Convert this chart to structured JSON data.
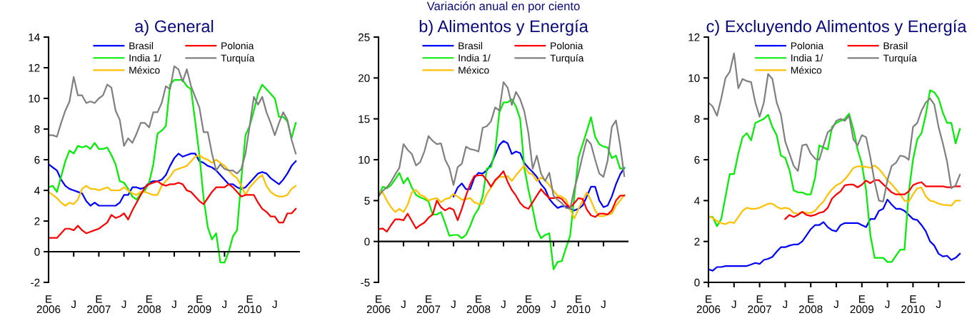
{
  "chart_data": [
    {
      "type": "line",
      "title": "a) General",
      "ref_lines": [
        {
          "axis": "y",
          "value": 0,
          "color": "#000000"
        }
      ],
      "legend": "top",
      "marker": "none",
      "line_style": "solid",
      "grid": false,
      "categories": [
        "E\n2006",
        null,
        null,
        null,
        null,
        null,
        "J",
        null,
        null,
        null,
        null,
        null,
        "E\n2007",
        null,
        null,
        null,
        null,
        null,
        "J",
        null,
        null,
        null,
        null,
        null,
        "E\n2008",
        null,
        null,
        null,
        null,
        null,
        "J",
        null,
        null,
        null,
        null,
        null,
        "E\n2009",
        null,
        null,
        null,
        null,
        null,
        "J",
        null,
        null,
        null,
        null,
        null,
        "E\n2010",
        null,
        null,
        null,
        null,
        null,
        "J",
        null,
        null,
        null,
        null,
        null
      ],
      "ylim": [
        -2,
        14
      ],
      "yticks": [
        -2,
        0,
        2,
        4,
        6,
        8,
        10,
        12,
        14
      ],
      "series": [
        {
          "name": "Brasil",
          "color": "#0000ff",
          "values": [
            5.7,
            5.5,
            5.3,
            4.7,
            4.3,
            4.1,
            4.0,
            3.9,
            3.8,
            3.3,
            3.0,
            3.2,
            3.0,
            3.0,
            3.0,
            3.0,
            3.0,
            3.2,
            3.7,
            3.7,
            4.2,
            4.2,
            4.1,
            4.2,
            4.5,
            4.6,
            4.6,
            4.7,
            5.0,
            5.6,
            6.1,
            6.4,
            6.2,
            6.3,
            6.4,
            6.4,
            5.9,
            5.8,
            5.6,
            5.5,
            5.3,
            5.0,
            4.7,
            4.4,
            4.4,
            4.2,
            4.1,
            4.2,
            4.5,
            4.8,
            5.1,
            5.2,
            5.1,
            4.8,
            4.6,
            4.4,
            4.7,
            5.1,
            5.6,
            5.9
          ]
        },
        {
          "name": "India 1/",
          "color": "#00ee00",
          "values": [
            4.2,
            4.3,
            3.9,
            4.9,
            5.9,
            6.6,
            6.4,
            6.9,
            6.8,
            6.9,
            6.7,
            7.1,
            6.7,
            6.7,
            6.8,
            6.3,
            5.7,
            4.6,
            4.5,
            4.1,
            3.6,
            3.4,
            3.8,
            4.0,
            4.5,
            5.7,
            7.7,
            7.9,
            8.2,
            10.9,
            11.2,
            11.2,
            11.2,
            10.8,
            10.6,
            8.5,
            6.3,
            3.5,
            1.6,
            0.8,
            1.2,
            -0.7,
            -0.7,
            0.0,
            1.0,
            1.4,
            4.7,
            7.6,
            8.2,
            9.2,
            10.3,
            10.9,
            10.6,
            10.3,
            10.0,
            8.8,
            8.8,
            8.5,
            7.4,
            8.4
          ]
        },
        {
          "name": "México",
          "color": "#ffc000",
          "values": [
            3.9,
            3.7,
            3.5,
            3.2,
            3.0,
            3.2,
            3.1,
            3.4,
            4.1,
            4.3,
            4.1,
            4.1,
            4.0,
            4.1,
            4.2,
            4.0,
            4.0,
            4.0,
            4.2,
            4.0,
            3.8,
            3.7,
            3.9,
            3.9,
            3.8,
            3.7,
            3.7,
            4.3,
            4.6,
            4.9,
            5.3,
            5.4,
            5.5,
            5.6,
            5.9,
            6.2,
            6.3,
            6.1,
            6.0,
            5.8,
            6.0,
            5.8,
            5.6,
            5.3,
            5.0,
            4.8,
            4.3,
            3.7,
            4.2,
            4.5,
            4.8,
            5.0,
            4.3,
            3.9,
            3.7,
            3.6,
            3.6,
            3.7,
            4.1,
            4.3
          ]
        },
        {
          "name": "Polonia",
          "color": "#ff0000",
          "values": [
            0.9,
            0.9,
            0.9,
            1.2,
            1.5,
            1.5,
            1.4,
            1.7,
            1.4,
            1.2,
            1.3,
            1.4,
            1.5,
            1.7,
            1.9,
            2.4,
            2.2,
            2.3,
            2.5,
            2.1,
            2.7,
            3.2,
            3.7,
            4.2,
            4.4,
            4.5,
            4.6,
            4.4,
            4.3,
            4.4,
            4.4,
            4.5,
            4.4,
            4.0,
            3.9,
            3.6,
            3.3,
            3.1,
            3.5,
            3.9,
            4.2,
            4.2,
            4.2,
            4.4,
            4.2,
            3.9,
            3.6,
            3.7,
            3.7,
            3.7,
            3.2,
            2.8,
            2.6,
            2.3,
            2.3,
            1.9,
            1.9,
            2.5,
            2.5,
            2.8
          ]
        },
        {
          "name": "Turquía",
          "color": "#808080",
          "values": [
            7.6,
            7.6,
            7.5,
            8.4,
            9.2,
            9.8,
            11.4,
            10.2,
            10.2,
            9.7,
            9.8,
            9.7,
            10.0,
            10.2,
            10.9,
            10.7,
            9.2,
            8.6,
            6.9,
            7.4,
            7.1,
            7.7,
            8.4,
            8.4,
            8.1,
            9.1,
            9.1,
            9.7,
            10.8,
            10.6,
            12.1,
            11.9,
            11.1,
            11.9,
            10.8,
            10.1,
            9.4,
            7.8,
            7.8,
            6.4,
            5.3,
            5.7,
            5.4,
            5.3,
            5.3,
            5.1,
            5.4,
            6.4,
            8.2,
            10.1,
            9.6,
            10.1,
            9.1,
            8.4,
            7.6,
            8.4,
            9.1,
            8.6,
            7.3,
            6.4
          ]
        }
      ]
    },
    {
      "type": "line",
      "title": "b) Alimentos y Energía",
      "annotations": [
        "Variación anual en por ciento"
      ],
      "ref_lines": [
        {
          "axis": "y",
          "value": 0,
          "color": "#000000"
        }
      ],
      "legend": "top",
      "marker": "none",
      "line_style": "solid",
      "grid": false,
      "categories": [
        "E\n2006",
        null,
        null,
        null,
        null,
        null,
        "J",
        null,
        null,
        null,
        null,
        null,
        "E\n2007",
        null,
        null,
        null,
        null,
        null,
        "J",
        null,
        null,
        null,
        null,
        null,
        "E\n2008",
        null,
        null,
        null,
        null,
        null,
        "J",
        null,
        null,
        null,
        null,
        null,
        "E\n2009",
        null,
        null,
        null,
        null,
        null,
        "J",
        null,
        null,
        null,
        null,
        null,
        "E\n2010",
        null,
        null,
        null,
        null,
        null,
        "J",
        null,
        null,
        null,
        null,
        null
      ],
      "ylim": [
        -5,
        25
      ],
      "yticks": [
        -5,
        0,
        5,
        10,
        15,
        20,
        25
      ],
      "series": [
        {
          "name": "Brasil",
          "color": "#0000ff",
          "values": [
            null,
            null,
            null,
            null,
            null,
            null,
            null,
            null,
            null,
            null,
            null,
            null,
            null,
            null,
            null,
            null,
            null,
            null,
            5.5,
            6.6,
            7.1,
            6.4,
            6.4,
            7.8,
            8.4,
            8.3,
            8.7,
            9.4,
            10.6,
            11.8,
            12.3,
            12.0,
            10.7,
            11.0,
            10.8,
            9.6,
            9.0,
            8.5,
            7.9,
            7.0,
            6.4,
            5.2,
            4.6,
            4.1,
            4.3,
            4.3,
            4.0,
            3.8,
            4.0,
            4.4,
            5.5,
            6.7,
            6.7,
            5.0,
            4.2,
            4.4,
            5.5,
            7.0,
            8.2,
            9.0
          ]
        },
        {
          "name": "India 1/",
          "color": "#00ee00",
          "values": [
            5.5,
            6.7,
            6.5,
            6.9,
            7.6,
            8.4,
            7.1,
            7.8,
            6.6,
            5.7,
            5.4,
            5.2,
            4.9,
            3.3,
            3.3,
            3.6,
            2.2,
            0.7,
            0.8,
            0.8,
            0.4,
            0.8,
            1.9,
            3.2,
            4.0,
            5.5,
            8.9,
            9.1,
            11.0,
            15.8,
            17.0,
            17.0,
            17.4,
            16.5,
            15.0,
            9.0,
            6.3,
            4.0,
            1.5,
            0.4,
            0.8,
            1.0,
            -3.4,
            -2.5,
            -2.4,
            -0.8,
            0.7,
            5.5,
            10.3,
            11.9,
            13.5,
            15.2,
            12.8,
            11.9,
            11.6,
            11.5,
            10.2,
            10.5,
            8.9,
            9.0
          ]
        },
        {
          "name": "México",
          "color": "#ffc000",
          "values": [
            6.1,
            6.0,
            5.0,
            4.2,
            3.6,
            4.0,
            3.6,
            4.5,
            6.0,
            6.3,
            5.7,
            5.5,
            5.0,
            5.2,
            5.3,
            4.8,
            5.2,
            5.3,
            5.8,
            5.5,
            5.1,
            5.2,
            5.3,
            4.8,
            4.6,
            4.6,
            5.8,
            6.6,
            7.4,
            7.9,
            7.9,
            8.0,
            7.4,
            8.1,
            8.7,
            9.3,
            8.4,
            8.2,
            7.4,
            7.8,
            7.5,
            6.9,
            6.2,
            5.6,
            5.5,
            5.1,
            4.0,
            2.8,
            4.0,
            5.0,
            6.0,
            5.0,
            3.8,
            3.1,
            3.1,
            3.3,
            3.4,
            4.4,
            5.0,
            5.7
          ]
        },
        {
          "name": "Polonia",
          "color": "#ff0000",
          "values": [
            1.5,
            1.6,
            1.2,
            2.0,
            2.7,
            2.7,
            2.6,
            3.4,
            2.5,
            1.6,
            2.0,
            2.3,
            2.9,
            3.3,
            5.0,
            4.2,
            3.8,
            4.1,
            3.9,
            2.6,
            4.0,
            5.6,
            7.0,
            8.0,
            8.1,
            8.1,
            7.5,
            6.7,
            7.5,
            8.0,
            8.6,
            7.3,
            6.3,
            5.6,
            4.7,
            4.2,
            4.0,
            4.8,
            5.6,
            6.4,
            5.8,
            5.3,
            5.3,
            5.4,
            5.2,
            4.6,
            4.1,
            4.7,
            5.3,
            5.2,
            3.9,
            3.2,
            3.0,
            3.4,
            3.4,
            3.3,
            3.8,
            5.0,
            5.6,
            5.6
          ]
        },
        {
          "name": "Turquía",
          "color": "#808080",
          "values": [
            5.5,
            6.2,
            6.6,
            7.3,
            8.2,
            9.0,
            11.9,
            11.2,
            10.7,
            9.3,
            9.7,
            11.0,
            12.9,
            12.3,
            11.9,
            12.0,
            10.0,
            9.0,
            6.9,
            9.1,
            9.5,
            11.6,
            11.3,
            11.2,
            11.0,
            13.9,
            14.1,
            14.7,
            16.4,
            16.0,
            19.5,
            18.8,
            16.7,
            18.3,
            17.4,
            15.9,
            13.2,
            8.9,
            10.5,
            8.3,
            7.4,
            8.4,
            5.6,
            5.1,
            4.7,
            4.1,
            4.0,
            6.4,
            8.3,
            10.5,
            12.5,
            11.9,
            10.0,
            8.3,
            7.9,
            9.9,
            14.0,
            14.8,
            11.8,
            8.0
          ]
        }
      ]
    },
    {
      "type": "line",
      "title": "c) Excluyendo Alimentos y Energía",
      "legend": "top",
      "marker": "none",
      "line_style": "solid",
      "grid": false,
      "categories": [
        "E\n2006",
        null,
        null,
        null,
        null,
        null,
        "J",
        null,
        null,
        null,
        null,
        null,
        "E\n2007",
        null,
        null,
        null,
        null,
        null,
        "J",
        null,
        null,
        null,
        null,
        null,
        "E\n2008",
        null,
        null,
        null,
        null,
        null,
        "J",
        null,
        null,
        null,
        null,
        null,
        "E\n2009",
        null,
        null,
        null,
        null,
        null,
        "J",
        null,
        null,
        null,
        null,
        null,
        "E\n2010",
        null,
        null,
        null,
        null,
        null,
        "J",
        null,
        null,
        null,
        null,
        null
      ],
      "ylim": [
        0,
        12
      ],
      "yticks": [
        0,
        2,
        4,
        6,
        8,
        10,
        12
      ],
      "series": [
        {
          "name": "Polonia",
          "color": "#0000ff",
          "values": [
            0.63,
            0.57,
            0.75,
            0.75,
            0.8,
            0.8,
            0.8,
            0.8,
            0.8,
            0.8,
            0.87,
            0.95,
            0.9,
            1.1,
            1.15,
            1.25,
            1.5,
            1.72,
            1.72,
            1.8,
            1.85,
            1.85,
            2.0,
            2.3,
            2.6,
            2.8,
            2.8,
            2.95,
            2.7,
            2.55,
            2.5,
            2.8,
            2.9,
            2.9,
            2.9,
            2.9,
            2.8,
            2.7,
            3.1,
            3.1,
            3.5,
            3.6,
            4.05,
            3.8,
            3.6,
            3.6,
            3.5,
            3.3,
            3.1,
            3.05,
            2.8,
            2.5,
            2.0,
            1.8,
            1.4,
            1.27,
            1.3,
            1.1,
            1.2,
            1.4
          ]
        },
        {
          "name": "India 1/",
          "color": "#00ee00",
          "values": [
            3.2,
            3.2,
            2.75,
            3.1,
            4.2,
            5.3,
            5.3,
            6.3,
            7.1,
            7.3,
            6.95,
            7.8,
            7.9,
            8.0,
            8.2,
            7.6,
            7.2,
            6.2,
            6.1,
            5.5,
            4.5,
            4.4,
            4.4,
            4.3,
            4.3,
            5.1,
            6.7,
            6.6,
            6.5,
            7.6,
            7.8,
            7.9,
            8.0,
            8.25,
            7.5,
            6.5,
            5.8,
            4.5,
            2.3,
            1.2,
            1.2,
            1.2,
            1.0,
            1.0,
            1.3,
            1.6,
            1.6,
            4.4,
            6.0,
            7.0,
            7.3,
            8.2,
            9.4,
            9.3,
            9.0,
            8.3,
            7.8,
            7.8,
            6.8,
            7.5
          ]
        },
        {
          "name": "México",
          "color": "#ffc000",
          "values": [
            3.25,
            3.15,
            3.0,
            2.9,
            2.85,
            2.95,
            2.9,
            3.2,
            3.5,
            3.65,
            3.6,
            3.6,
            3.65,
            3.75,
            3.85,
            3.85,
            3.7,
            3.6,
            3.65,
            3.6,
            3.4,
            3.35,
            3.45,
            3.4,
            3.4,
            3.5,
            3.75,
            3.95,
            4.3,
            4.55,
            4.75,
            4.85,
            5.05,
            5.3,
            5.6,
            5.67,
            5.67,
            5.65,
            5.6,
            5.72,
            5.55,
            5.3,
            5.0,
            4.8,
            4.55,
            4.3,
            4.0,
            3.95,
            4.3,
            4.6,
            4.64,
            4.2,
            4.0,
            3.95,
            3.85,
            3.8,
            3.78,
            3.75,
            4.0,
            4.0
          ]
        },
        {
          "name": "Brasil",
          "color": "#ff0000",
          "values": [
            null,
            null,
            null,
            null,
            null,
            null,
            null,
            null,
            null,
            null,
            null,
            null,
            null,
            null,
            null,
            null,
            null,
            null,
            3.1,
            3.3,
            3.2,
            3.3,
            3.45,
            3.3,
            3.25,
            3.3,
            3.4,
            3.45,
            3.65,
            4.1,
            4.3,
            4.45,
            4.75,
            4.78,
            4.78,
            4.65,
            4.78,
            4.98,
            4.85,
            5.0,
            5.0,
            4.8,
            4.6,
            4.4,
            4.3,
            4.3,
            4.3,
            4.45,
            4.75,
            4.85,
            4.9,
            4.7,
            4.7,
            4.7,
            4.7,
            4.7,
            4.65,
            4.65,
            4.7,
            4.7
          ]
        },
        {
          "name": "Turquía",
          "color": "#808080",
          "values": [
            8.8,
            8.6,
            8.15,
            9.0,
            10.0,
            10.3,
            11.2,
            9.5,
            9.95,
            9.85,
            9.8,
            8.8,
            8.1,
            8.8,
            10.2,
            9.95,
            8.8,
            8.2,
            6.9,
            6.3,
            5.7,
            5.45,
            6.7,
            6.75,
            6.3,
            6.05,
            6.0,
            6.7,
            7.35,
            7.5,
            7.9,
            8.0,
            7.9,
            8.15,
            7.0,
            6.7,
            7.2,
            7.1,
            6.1,
            4.9,
            4.0,
            3.95,
            5.0,
            5.7,
            5.85,
            6.2,
            6.15,
            6.0,
            7.6,
            7.8,
            8.4,
            8.8,
            9.0,
            8.7,
            7.6,
            6.8,
            5.9,
            4.6,
            4.75,
            5.27
          ]
        }
      ]
    }
  ]
}
